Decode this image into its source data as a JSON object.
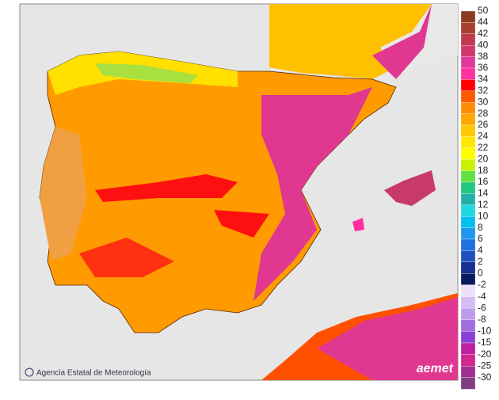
{
  "map": {
    "credit": "Agencia Estatal de Meteorología",
    "logo": "aemet",
    "legend_positive": [
      {
        "label": "50",
        "color": "#8c3b1e"
      },
      {
        "label": "44",
        "color": "#a8402f"
      },
      {
        "label": "42",
        "color": "#c03a4e"
      },
      {
        "label": "40",
        "color": "#d0386e"
      },
      {
        "label": "38",
        "color": "#e0389a"
      },
      {
        "label": "36",
        "color": "#ff30a0"
      },
      {
        "label": "34",
        "color": "#ff0000"
      },
      {
        "label": "32",
        "color": "#ff5a00"
      },
      {
        "label": "30",
        "color": "#ff8c00"
      },
      {
        "label": "28",
        "color": "#ffa800"
      },
      {
        "label": "26",
        "color": "#ffc800"
      },
      {
        "label": "24",
        "color": "#ffe600"
      },
      {
        "label": "22",
        "color": "#ffff00"
      },
      {
        "label": "20",
        "color": "#c8f000"
      },
      {
        "label": "18",
        "color": "#60e040"
      },
      {
        "label": "16",
        "color": "#20c880"
      },
      {
        "label": "14",
        "color": "#20b0a8"
      },
      {
        "label": "12",
        "color": "#20d8e0"
      },
      {
        "label": "10",
        "color": "#00c0f0"
      },
      {
        "label": "8",
        "color": "#1e98f0"
      },
      {
        "label": "6",
        "color": "#2070e0"
      },
      {
        "label": "4",
        "color": "#2050c0"
      },
      {
        "label": "2",
        "color": "#1a3090"
      },
      {
        "label": "0",
        "color": "#0a1a60"
      }
    ],
    "legend_negative": [
      {
        "label": "-2",
        "color": "#ece0fa"
      },
      {
        "label": "-4",
        "color": "#d4bcf2"
      },
      {
        "label": "-6",
        "color": "#bc9cea"
      },
      {
        "label": "-8",
        "color": "#a070e0"
      },
      {
        "label": "-10",
        "color": "#8840d8"
      },
      {
        "label": "-15",
        "color": "#c020a0"
      },
      {
        "label": "-20",
        "color": "#d0288c"
      },
      {
        "label": "-25",
        "color": "#a03090"
      },
      {
        "label": "-30",
        "color": "#804080"
      }
    ]
  }
}
